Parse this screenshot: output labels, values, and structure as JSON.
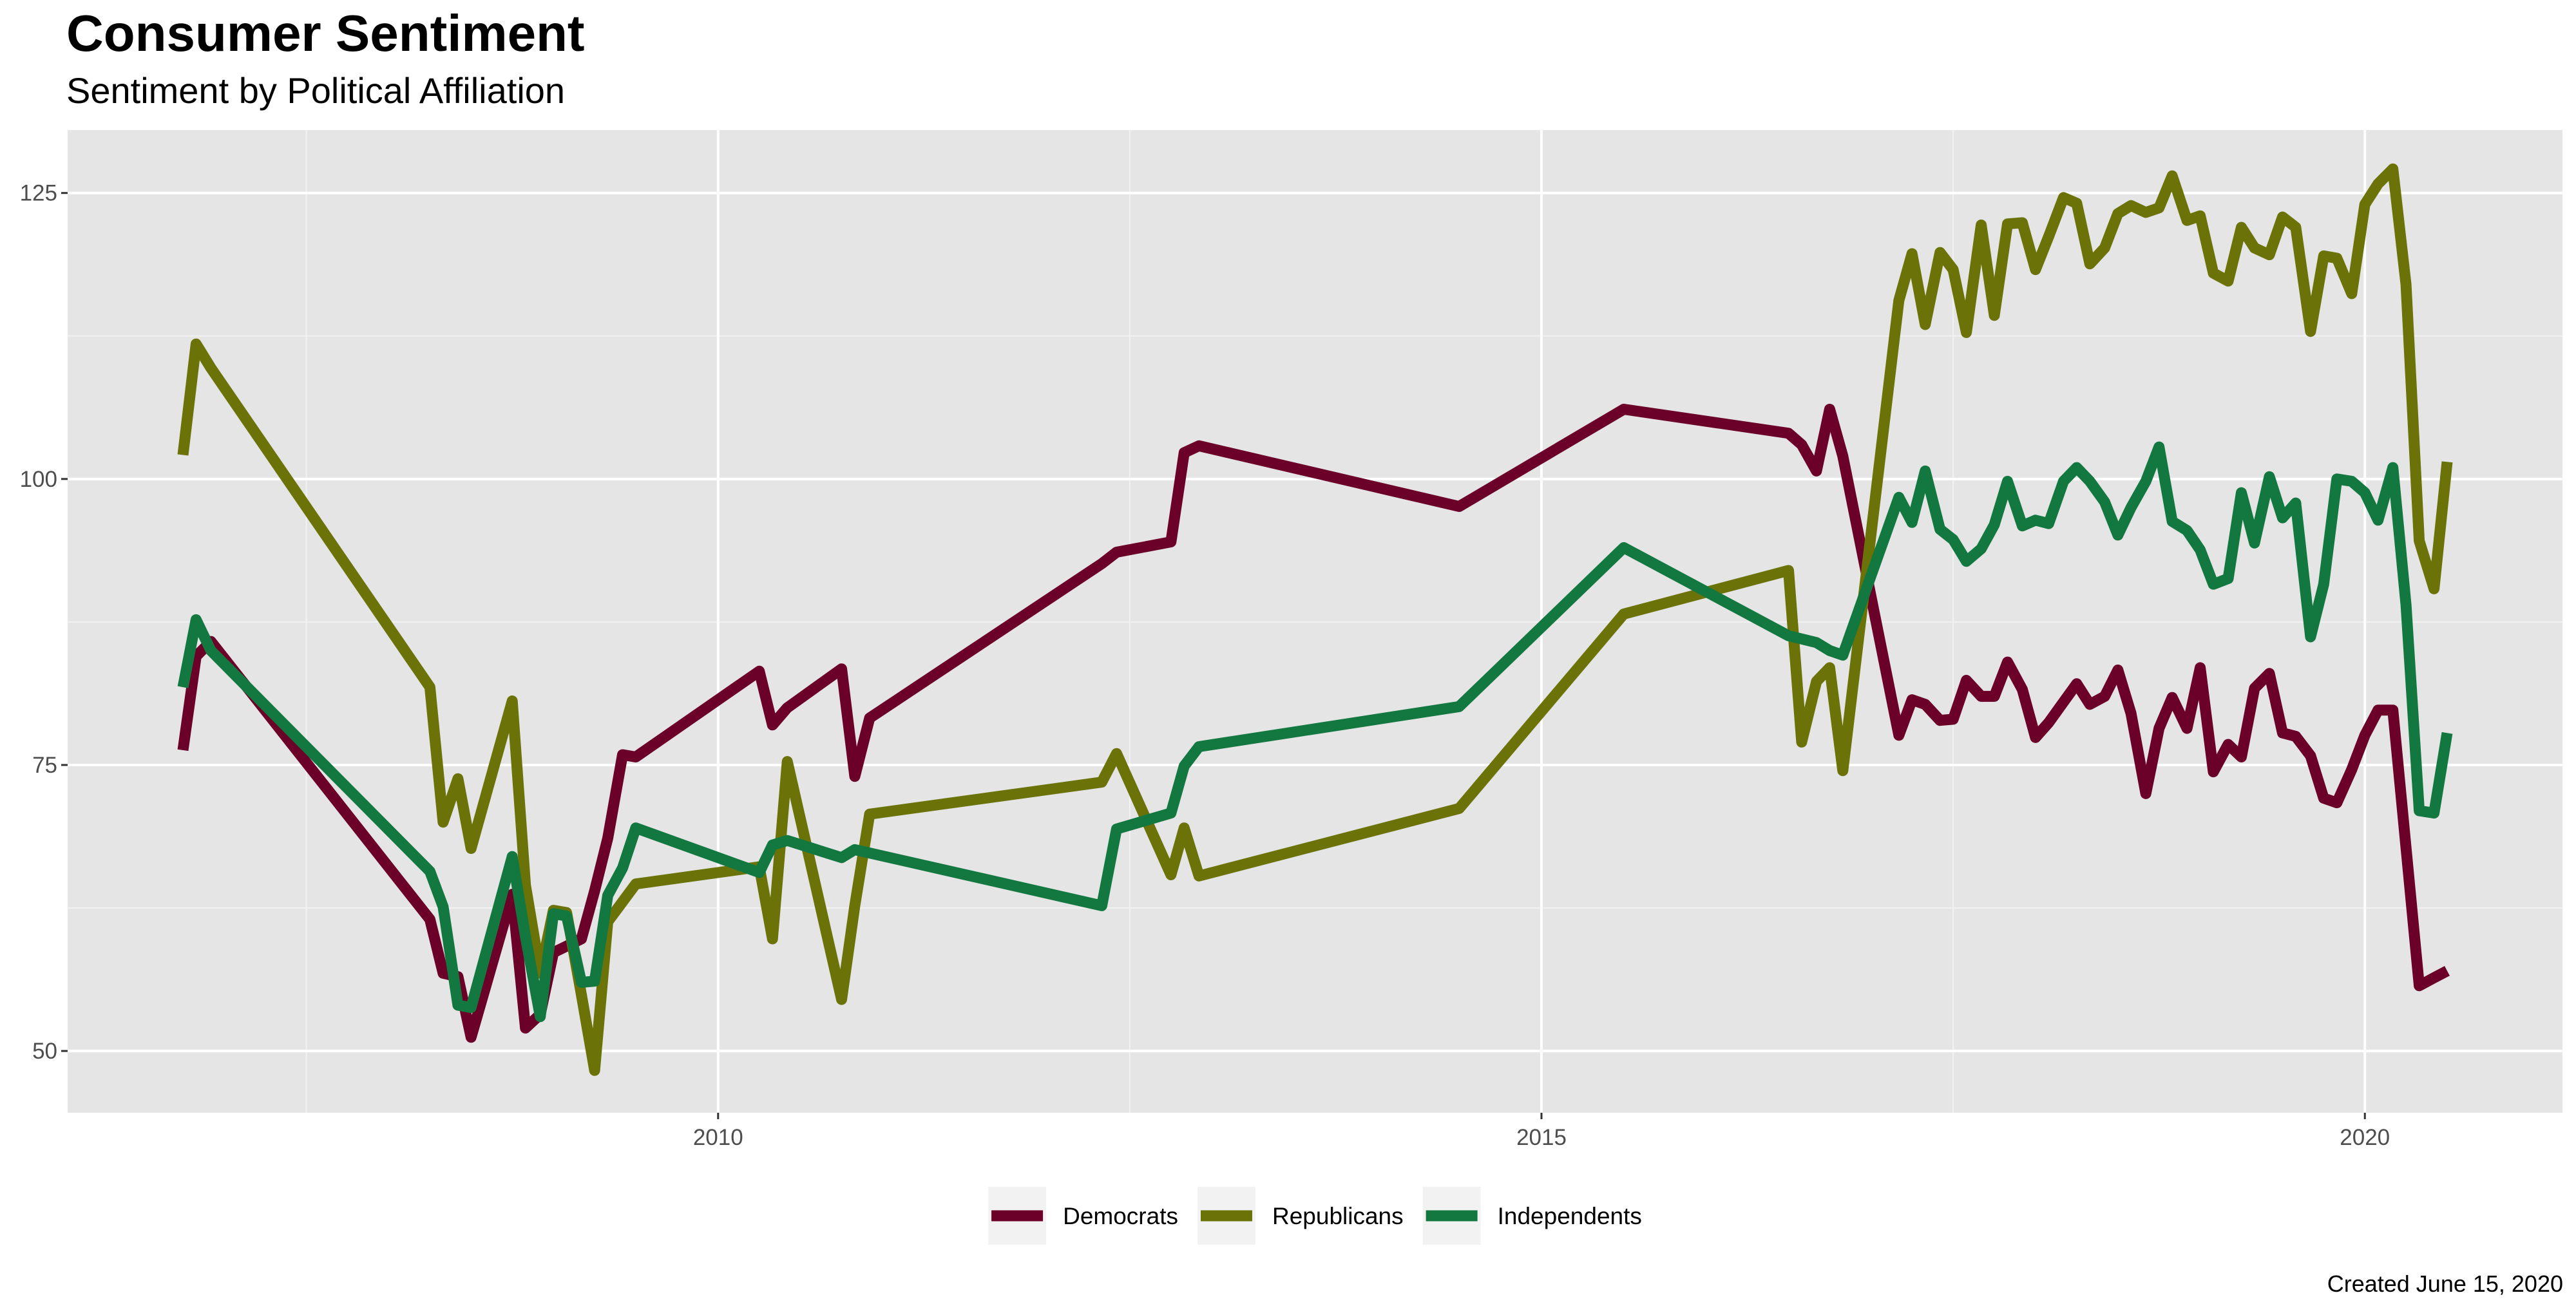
{
  "title": "Consumer Sentiment",
  "subtitle": "Sentiment by Political Affiliation",
  "caption": "Created June 15, 2020",
  "chart_data": {
    "type": "line",
    "title": "Consumer Sentiment",
    "subtitle": "Sentiment by Political Affiliation",
    "xlabel": "",
    "ylabel": "",
    "xlim": [
      2006.05,
      2021.2
    ],
    "ylim": [
      44.6,
      130.5
    ],
    "x_ticks": [
      2010,
      2015,
      2020
    ],
    "x_minor_ticks": [
      2007.5,
      2012.5,
      2017.5
    ],
    "y_ticks": [
      50,
      75,
      100,
      125
    ],
    "y_minor_ticks": [
      62.5,
      87.5,
      112.5
    ],
    "grid": true,
    "legend_position": "bottom",
    "series": [
      {
        "name": "Democrats",
        "color": "#6b0028",
        "points": [
          [
            2006.75,
            76.3
          ],
          [
            2006.83,
            84.5
          ],
          [
            2006.92,
            85.8
          ],
          [
            2008.25,
            61.5
          ],
          [
            2008.33,
            56.8
          ],
          [
            2008.42,
            56.5
          ],
          [
            2008.5,
            51.2
          ],
          [
            2008.75,
            63.7
          ],
          [
            2008.83,
            52.0
          ],
          [
            2008.92,
            53.2
          ],
          [
            2009.0,
            58.6
          ],
          [
            2009.17,
            59.8
          ],
          [
            2009.25,
            64.0
          ],
          [
            2009.33,
            68.6
          ],
          [
            2009.42,
            75.9
          ],
          [
            2009.5,
            75.7
          ],
          [
            2010.25,
            83.2
          ],
          [
            2010.33,
            78.5
          ],
          [
            2010.42,
            80.0
          ],
          [
            2010.75,
            83.4
          ],
          [
            2010.83,
            74.0
          ],
          [
            2010.92,
            79.1
          ],
          [
            2012.33,
            92.6
          ],
          [
            2012.42,
            93.6
          ],
          [
            2012.75,
            94.5
          ],
          [
            2012.83,
            102.3
          ],
          [
            2012.92,
            102.9
          ],
          [
            2014.5,
            97.6
          ],
          [
            2015.5,
            106.1
          ],
          [
            2016.5,
            104.0
          ],
          [
            2016.58,
            103.0
          ],
          [
            2016.67,
            100.7
          ],
          [
            2016.75,
            106.1
          ],
          [
            2016.83,
            102.0
          ],
          [
            2017.17,
            77.6
          ],
          [
            2017.25,
            80.7
          ],
          [
            2017.33,
            80.3
          ],
          [
            2017.42,
            78.9
          ],
          [
            2017.5,
            79.0
          ],
          [
            2017.58,
            82.4
          ],
          [
            2017.67,
            81.0
          ],
          [
            2017.75,
            81.0
          ],
          [
            2017.83,
            84.0
          ],
          [
            2017.92,
            81.6
          ],
          [
            2018.0,
            77.4
          ],
          [
            2018.08,
            78.7
          ],
          [
            2018.17,
            80.5
          ],
          [
            2018.25,
            82.1
          ],
          [
            2018.33,
            80.3
          ],
          [
            2018.42,
            81.0
          ],
          [
            2018.5,
            83.3
          ],
          [
            2018.58,
            79.5
          ],
          [
            2018.67,
            72.5
          ],
          [
            2018.75,
            78.2
          ],
          [
            2018.83,
            80.9
          ],
          [
            2018.92,
            78.2
          ],
          [
            2019.0,
            83.5
          ],
          [
            2019.08,
            74.4
          ],
          [
            2019.17,
            76.8
          ],
          [
            2019.25,
            75.7
          ],
          [
            2019.33,
            81.7
          ],
          [
            2019.42,
            83.0
          ],
          [
            2019.5,
            77.8
          ],
          [
            2019.58,
            77.5
          ],
          [
            2019.67,
            75.8
          ],
          [
            2019.75,
            72.1
          ],
          [
            2019.83,
            71.7
          ],
          [
            2019.92,
            74.6
          ],
          [
            2020.0,
            77.6
          ],
          [
            2020.08,
            79.8
          ],
          [
            2020.17,
            79.8
          ],
          [
            2020.33,
            55.7
          ],
          [
            2020.42,
            56.4
          ],
          [
            2020.5,
            57.0
          ]
        ]
      },
      {
        "name": "Republicans",
        "color": "#6b7308",
        "points": [
          [
            2006.75,
            102.1
          ],
          [
            2006.83,
            111.8
          ],
          [
            2006.92,
            109.7
          ],
          [
            2008.25,
            81.8
          ],
          [
            2008.33,
            70.0
          ],
          [
            2008.42,
            73.8
          ],
          [
            2008.5,
            67.7
          ],
          [
            2008.75,
            80.6
          ],
          [
            2008.83,
            64.5
          ],
          [
            2008.92,
            56.8
          ],
          [
            2009.0,
            62.3
          ],
          [
            2009.08,
            62.1
          ],
          [
            2009.17,
            54.9
          ],
          [
            2009.25,
            48.3
          ],
          [
            2009.33,
            61.3
          ],
          [
            2009.5,
            64.6
          ],
          [
            2010.25,
            66.1
          ],
          [
            2010.33,
            59.8
          ],
          [
            2010.42,
            75.3
          ],
          [
            2010.75,
            54.5
          ],
          [
            2010.83,
            62.7
          ],
          [
            2010.92,
            70.7
          ],
          [
            2012.33,
            73.5
          ],
          [
            2012.42,
            76.0
          ],
          [
            2012.75,
            65.4
          ],
          [
            2012.83,
            69.5
          ],
          [
            2012.92,
            65.3
          ],
          [
            2014.5,
            71.2
          ],
          [
            2015.5,
            88.2
          ],
          [
            2016.5,
            92.0
          ],
          [
            2016.58,
            77.0
          ],
          [
            2016.67,
            82.3
          ],
          [
            2016.75,
            83.5
          ],
          [
            2016.83,
            74.5
          ],
          [
            2017.17,
            115.6
          ],
          [
            2017.25,
            119.7
          ],
          [
            2017.33,
            113.5
          ],
          [
            2017.42,
            119.8
          ],
          [
            2017.5,
            118.3
          ],
          [
            2017.58,
            112.8
          ],
          [
            2017.67,
            122.2
          ],
          [
            2017.75,
            114.3
          ],
          [
            2017.83,
            122.3
          ],
          [
            2017.92,
            122.4
          ],
          [
            2018.0,
            118.3
          ],
          [
            2018.08,
            121.2
          ],
          [
            2018.17,
            124.6
          ],
          [
            2018.25,
            124.1
          ],
          [
            2018.33,
            118.8
          ],
          [
            2018.42,
            120.2
          ],
          [
            2018.5,
            123.2
          ],
          [
            2018.58,
            123.9
          ],
          [
            2018.67,
            123.3
          ],
          [
            2018.75,
            123.7
          ],
          [
            2018.83,
            126.5
          ],
          [
            2018.92,
            122.6
          ],
          [
            2019.0,
            123.0
          ],
          [
            2019.08,
            118.0
          ],
          [
            2019.17,
            117.3
          ],
          [
            2019.25,
            122.0
          ],
          [
            2019.33,
            120.2
          ],
          [
            2019.42,
            119.6
          ],
          [
            2019.5,
            122.9
          ],
          [
            2019.58,
            122.0
          ],
          [
            2019.67,
            112.9
          ],
          [
            2019.75,
            119.5
          ],
          [
            2019.83,
            119.3
          ],
          [
            2019.92,
            116.2
          ],
          [
            2020.0,
            124.0
          ],
          [
            2020.08,
            125.8
          ],
          [
            2020.17,
            127.1
          ],
          [
            2020.25,
            117.0
          ],
          [
            2020.33,
            94.6
          ],
          [
            2020.42,
            90.4
          ],
          [
            2020.5,
            101.5
          ]
        ]
      },
      {
        "name": "Independents",
        "color": "#127840",
        "points": [
          [
            2006.75,
            81.8
          ],
          [
            2006.83,
            87.7
          ],
          [
            2006.92,
            85.0
          ],
          [
            2008.25,
            65.7
          ],
          [
            2008.33,
            62.6
          ],
          [
            2008.42,
            54.0
          ],
          [
            2008.5,
            53.8
          ],
          [
            2008.75,
            67.0
          ],
          [
            2008.83,
            60.0
          ],
          [
            2008.92,
            53.0
          ],
          [
            2009.0,
            62.0
          ],
          [
            2009.08,
            61.8
          ],
          [
            2009.17,
            56.0
          ],
          [
            2009.25,
            56.1
          ],
          [
            2009.33,
            63.6
          ],
          [
            2009.42,
            66.0
          ],
          [
            2009.5,
            69.5
          ],
          [
            2010.25,
            65.6
          ],
          [
            2010.33,
            68.0
          ],
          [
            2010.42,
            68.4
          ],
          [
            2010.75,
            66.9
          ],
          [
            2010.83,
            67.6
          ],
          [
            2012.33,
            62.7
          ],
          [
            2012.42,
            69.4
          ],
          [
            2012.75,
            70.8
          ],
          [
            2012.83,
            74.9
          ],
          [
            2012.92,
            76.6
          ],
          [
            2014.5,
            80.1
          ],
          [
            2015.5,
            94.0
          ],
          [
            2016.5,
            86.3
          ],
          [
            2016.67,
            85.7
          ],
          [
            2016.75,
            85.0
          ],
          [
            2016.83,
            84.6
          ],
          [
            2017.17,
            98.4
          ],
          [
            2017.25,
            96.2
          ],
          [
            2017.33,
            100.7
          ],
          [
            2017.42,
            95.6
          ],
          [
            2017.5,
            94.7
          ],
          [
            2017.58,
            92.8
          ],
          [
            2017.67,
            93.9
          ],
          [
            2017.75,
            96.0
          ],
          [
            2017.83,
            99.8
          ],
          [
            2017.92,
            95.9
          ],
          [
            2018.0,
            96.4
          ],
          [
            2018.08,
            96.1
          ],
          [
            2018.17,
            99.8
          ],
          [
            2018.25,
            101.0
          ],
          [
            2018.33,
            99.8
          ],
          [
            2018.42,
            98.0
          ],
          [
            2018.5,
            95.1
          ],
          [
            2018.58,
            97.5
          ],
          [
            2018.67,
            99.8
          ],
          [
            2018.75,
            102.8
          ],
          [
            2018.83,
            96.3
          ],
          [
            2018.92,
            95.5
          ],
          [
            2019.0,
            93.8
          ],
          [
            2019.08,
            90.8
          ],
          [
            2019.17,
            91.3
          ],
          [
            2019.25,
            98.8
          ],
          [
            2019.33,
            94.4
          ],
          [
            2019.42,
            100.2
          ],
          [
            2019.5,
            96.6
          ],
          [
            2019.58,
            97.9
          ],
          [
            2019.67,
            86.2
          ],
          [
            2019.75,
            90.8
          ],
          [
            2019.83,
            100.0
          ],
          [
            2019.92,
            99.8
          ],
          [
            2020.0,
            98.8
          ],
          [
            2020.08,
            96.4
          ],
          [
            2020.17,
            101.0
          ],
          [
            2020.25,
            89.0
          ],
          [
            2020.33,
            71.0
          ],
          [
            2020.42,
            70.8
          ],
          [
            2020.5,
            77.8
          ]
        ]
      }
    ]
  }
}
